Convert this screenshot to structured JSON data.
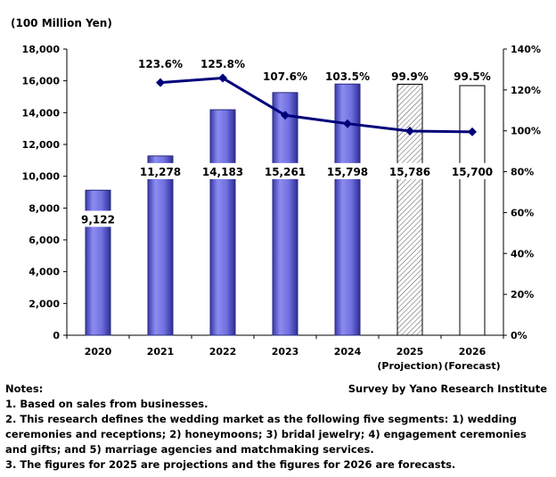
{
  "chart_data": {
    "type": "bar+line",
    "unit_label": "(100 Million Yen)",
    "categories": [
      "2020",
      "2021",
      "2022",
      "2023",
      "2024",
      "2025",
      "2026"
    ],
    "category_sublabels": [
      "",
      "",
      "",
      "",
      "",
      "(Projection)",
      "(Forecast)"
    ],
    "series": [
      {
        "values": [
          9122,
          11278,
          14183,
          15261,
          15798,
          15786,
          15700
        ],
        "data_labels": [
          "9,122",
          "11,278",
          "14,183",
          "15,261",
          "15,798",
          "15,786",
          "15,700"
        ],
        "styles": [
          "solid",
          "solid",
          "solid",
          "solid",
          "solid",
          "hatched",
          "outline"
        ]
      },
      {
        "x": [
          "2021",
          "2022",
          "2023",
          "2024",
          "2025",
          "2026"
        ],
        "values": [
          123.6,
          125.8,
          107.6,
          103.5,
          99.9,
          99.5
        ],
        "data_labels": [
          "123.6%",
          "125.8%",
          "107.6%",
          "103.5%",
          "99.9%",
          "99.5%"
        ]
      }
    ],
    "y_left": {
      "min": 0,
      "max": 18000,
      "ticks": [
        "0",
        "2,000",
        "4,000",
        "6,000",
        "8,000",
        "10,000",
        "12,000",
        "14,000",
        "16,000",
        "18,000"
      ]
    },
    "y_right": {
      "min": 0,
      "max": 140,
      "ticks": [
        "0%",
        "20%",
        "40%",
        "60%",
        "80%",
        "100%",
        "120%",
        "140%"
      ]
    },
    "grid": false,
    "colors": {
      "bar": "#6f6fe0",
      "bar_dark": "#3a3aa8",
      "line": "#00007a"
    }
  },
  "notes": {
    "heading": "Notes:",
    "source": "Survey by Yano Research Institute",
    "items": [
      "1. Based on sales from businesses.",
      "2. This research defines the wedding market as the following five segments: 1) wedding ceremonies and receptions; 2) honeymoons; 3) bridal jewelry; 4) engagement ceremonies and gifts; and 5) marriage agencies and matchmaking services.",
      "3. The figures for 2025 are projections and the figures for 2026 are forecasts."
    ]
  }
}
